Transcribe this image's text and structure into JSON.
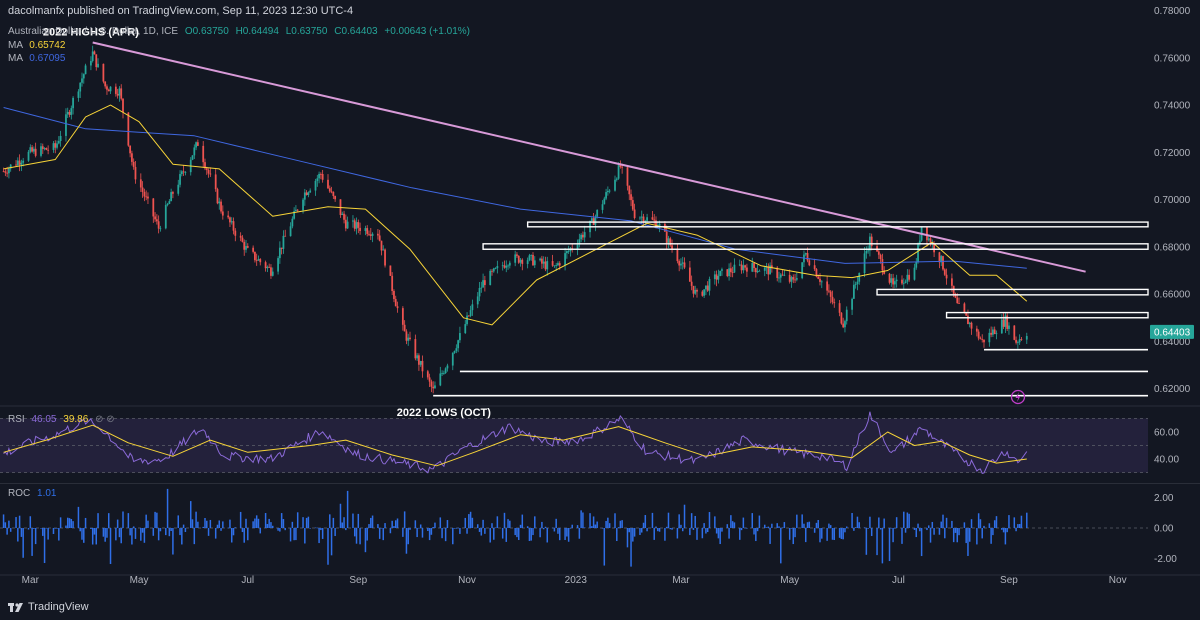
{
  "header": {
    "publish_line": "dacolmanfx published on TradingView.com, Sep 11, 2023 12:30 UTC-4"
  },
  "symbol_line": {
    "name": "Australian Dollar / U.S. Dollar, 1D, ICE",
    "o": "O0.63750",
    "h": "H0.64494",
    "l": "L0.63750",
    "c": "C0.64403",
    "chg": "+0.00643 (+1.01%)"
  },
  "ma_lines": [
    {
      "label": "MA",
      "value": "0.65742",
      "color": "#f7d438"
    },
    {
      "label": "MA",
      "value": "0.67095",
      "color": "#3f67e0"
    }
  ],
  "rsi_label": {
    "label": "RSI",
    "v1": "46.05",
    "v2": "39.86"
  },
  "roc_label": {
    "label": "ROC",
    "v1": "1.01"
  },
  "brand": {
    "name": "TradingView"
  },
  "colors": {
    "up": "#26a69a",
    "down": "#ef5350",
    "ma_fast": "#f7d438",
    "ma_slow": "#3f67e0",
    "trendline": "#d89ad8",
    "rsi": "#8b6ad8",
    "roc": "#2f6fe8",
    "bg": "#131722"
  },
  "chart_data": [
    {
      "type": "candlestick",
      "title": "Australian Dollar / U.S. Dollar, 1D, ICE",
      "x_ticks": [
        "Mar",
        "May",
        "Jul",
        "Sep",
        "Nov",
        "2023",
        "Mar",
        "May",
        "Jul",
        "Sep",
        "Nov"
      ],
      "y_ticks": [
        "0.78000",
        "0.76000",
        "0.74000",
        "0.72000",
        "0.70000",
        "0.68000",
        "0.66000",
        "0.64000",
        "0.62000"
      ],
      "ylim": [
        0.6135,
        0.7845
      ],
      "x_range": [
        "2022-02-12",
        "2023-11-18"
      ],
      "last_price": "0.64403",
      "price_path": [
        [
          "2022-02-14",
          0.712
        ],
        [
          "2022-03-01",
          0.72
        ],
        [
          "2022-03-15",
          0.722
        ],
        [
          "2022-03-28",
          0.748
        ],
        [
          "2022-04-05",
          0.762
        ],
        [
          "2022-04-12",
          0.748
        ],
        [
          "2022-04-20",
          0.746
        ],
        [
          "2022-04-28",
          0.712
        ],
        [
          "2022-05-12",
          0.688
        ],
        [
          "2022-05-20",
          0.703
        ],
        [
          "2022-06-03",
          0.724
        ],
        [
          "2022-06-16",
          0.696
        ],
        [
          "2022-07-01",
          0.678
        ],
        [
          "2022-07-14",
          0.67
        ],
        [
          "2022-08-01",
          0.702
        ],
        [
          "2022-08-11",
          0.711
        ],
        [
          "2022-08-25",
          0.69
        ],
        [
          "2022-09-12",
          0.686
        ],
        [
          "2022-09-26",
          0.645
        ],
        [
          "2022-10-13",
          0.619
        ],
        [
          "2022-10-28",
          0.642
        ],
        [
          "2022-11-10",
          0.665
        ],
        [
          "2022-11-25",
          0.675
        ],
        [
          "2022-12-05",
          0.675
        ],
        [
          "2022-12-20",
          0.671
        ],
        [
          "2023-01-10",
          0.69
        ],
        [
          "2023-01-26",
          0.714
        ],
        [
          "2023-02-03",
          0.694
        ],
        [
          "2023-02-16",
          0.69
        ],
        [
          "2023-03-01",
          0.673
        ],
        [
          "2023-03-10",
          0.659
        ],
        [
          "2023-03-22",
          0.668
        ],
        [
          "2023-04-05",
          0.672
        ],
        [
          "2023-04-20",
          0.67
        ],
        [
          "2023-05-03",
          0.665
        ],
        [
          "2023-05-10",
          0.677
        ],
        [
          "2023-05-20",
          0.664
        ],
        [
          "2023-05-31",
          0.648
        ],
        [
          "2023-06-15",
          0.683
        ],
        [
          "2023-06-28",
          0.663
        ],
        [
          "2023-07-10",
          0.67
        ],
        [
          "2023-07-14",
          0.689
        ],
        [
          "2023-07-25",
          0.674
        ],
        [
          "2023-08-03",
          0.655
        ],
        [
          "2023-08-17",
          0.64
        ],
        [
          "2023-08-30",
          0.649
        ],
        [
          "2023-09-05",
          0.64
        ],
        [
          "2023-09-11",
          0.644
        ]
      ],
      "moving_averages": [
        {
          "value": "0.65742",
          "points": [
            [
              "2022-02-14",
              0.713
            ],
            [
              "2022-03-15",
              0.717
            ],
            [
              "2022-04-01",
              0.735
            ],
            [
              "2022-04-15",
              0.74
            ],
            [
              "2022-05-01",
              0.733
            ],
            [
              "2022-05-20",
              0.715
            ],
            [
              "2022-06-15",
              0.713
            ],
            [
              "2022-07-15",
              0.693
            ],
            [
              "2022-08-15",
              0.697
            ],
            [
              "2022-09-05",
              0.696
            ],
            [
              "2022-09-30",
              0.679
            ],
            [
              "2022-10-30",
              0.65
            ],
            [
              "2022-11-15",
              0.647
            ],
            [
              "2022-12-10",
              0.666
            ],
            [
              "2023-01-10",
              0.678
            ],
            [
              "2023-02-10",
              0.69
            ],
            [
              "2023-03-10",
              0.685
            ],
            [
              "2023-04-15",
              0.672
            ],
            [
              "2023-05-15",
              0.668
            ],
            [
              "2023-06-05",
              0.667
            ],
            [
              "2023-06-25",
              0.67
            ],
            [
              "2023-07-20",
              0.682
            ],
            [
              "2023-08-10",
              0.668
            ],
            [
              "2023-08-25",
              0.668
            ],
            [
              "2023-09-11",
              0.657
            ]
          ]
        },
        {
          "value": "0.67095",
          "points": [
            [
              "2022-02-14",
              0.739
            ],
            [
              "2022-04-01",
              0.73
            ],
            [
              "2022-06-01",
              0.727
            ],
            [
              "2022-08-01",
              0.716
            ],
            [
              "2022-10-01",
              0.705
            ],
            [
              "2022-12-01",
              0.696
            ],
            [
              "2023-02-01",
              0.691
            ],
            [
              "2023-04-01",
              0.679
            ],
            [
              "2023-06-01",
              0.673
            ],
            [
              "2023-08-01",
              0.674
            ],
            [
              "2023-09-11",
              0.671
            ]
          ]
        }
      ],
      "trendline": {
        "from": [
          "2022-04-05",
          0.7665
        ],
        "to": [
          "2023-10-14",
          0.6695
        ]
      },
      "horizontal_lines": [
        {
          "from": "2023-08-18",
          "y": 0.6365
        },
        {
          "from": "2022-10-28",
          "y": 0.6273
        },
        {
          "from": "2022-10-13",
          "y": 0.617
        }
      ],
      "zones": [
        {
          "from": "2022-12-05",
          "y_top": 0.6905,
          "y_bottom": 0.6885
        },
        {
          "from": "2022-11-10",
          "y_top": 0.6813,
          "y_bottom": 0.679
        },
        {
          "from": "2023-06-19",
          "y_top": 0.662,
          "y_bottom": 0.6597
        },
        {
          "from": "2023-07-28",
          "y_top": 0.6522,
          "y_bottom": 0.65
        }
      ],
      "annotations": [
        {
          "text": "2022 HIGHS (APR)",
          "at": [
            "2022-04-04",
            0.7695
          ]
        },
        {
          "text": "2022 LOWS (OCT)",
          "at": [
            "2022-10-19",
            0.6085
          ]
        }
      ]
    },
    {
      "type": "line",
      "title": "RSI",
      "y_ticks": [
        "60.00",
        "40.00"
      ],
      "ylim": [
        23,
        77
      ],
      "band": [
        30,
        70
      ],
      "rsi_path": [
        [
          "2022-02-14",
          44
        ],
        [
          "2022-03-01",
          52
        ],
        [
          "2022-03-15",
          58
        ],
        [
          "2022-04-01",
          68
        ],
        [
          "2022-04-10",
          63
        ],
        [
          "2022-04-28",
          38
        ],
        [
          "2022-05-15",
          40
        ],
        [
          "2022-06-05",
          63
        ],
        [
          "2022-06-18",
          42
        ],
        [
          "2022-07-14",
          40
        ],
        [
          "2022-08-11",
          61
        ],
        [
          "2022-08-30",
          44
        ],
        [
          "2022-09-25",
          37
        ],
        [
          "2022-10-13",
          32
        ],
        [
          "2022-11-01",
          49
        ],
        [
          "2022-11-25",
          64
        ],
        [
          "2022-12-15",
          52
        ],
        [
          "2023-01-05",
          55
        ],
        [
          "2023-01-26",
          70
        ],
        [
          "2023-02-10",
          45
        ],
        [
          "2023-03-10",
          38
        ],
        [
          "2023-04-05",
          54
        ],
        [
          "2023-05-03",
          45
        ],
        [
          "2023-05-20",
          42
        ],
        [
          "2023-06-02",
          35
        ],
        [
          "2023-06-15",
          73
        ],
        [
          "2023-06-28",
          44
        ],
        [
          "2023-07-14",
          63
        ],
        [
          "2023-08-03",
          43
        ],
        [
          "2023-08-17",
          32
        ],
        [
          "2023-08-30",
          46
        ],
        [
          "2023-09-06",
          38
        ],
        [
          "2023-09-11",
          46
        ]
      ],
      "signal_path": [
        [
          "2022-02-14",
          45
        ],
        [
          "2022-03-10",
          54
        ],
        [
          "2022-04-05",
          65
        ],
        [
          "2022-04-25",
          52
        ],
        [
          "2022-05-20",
          42
        ],
        [
          "2022-06-10",
          54
        ],
        [
          "2022-07-01",
          45
        ],
        [
          "2022-08-05",
          50
        ],
        [
          "2022-08-25",
          54
        ],
        [
          "2022-09-20",
          43
        ],
        [
          "2022-10-15",
          35
        ],
        [
          "2022-11-05",
          45
        ],
        [
          "2022-12-01",
          58
        ],
        [
          "2022-12-25",
          54
        ],
        [
          "2023-01-25",
          64
        ],
        [
          "2023-02-20",
          52
        ],
        [
          "2023-03-15",
          42
        ],
        [
          "2023-04-10",
          49
        ],
        [
          "2023-05-10",
          46
        ],
        [
          "2023-06-05",
          41
        ],
        [
          "2023-06-25",
          60
        ],
        [
          "2023-07-10",
          50
        ],
        [
          "2023-07-25",
          53
        ],
        [
          "2023-08-10",
          43
        ],
        [
          "2023-08-25",
          37
        ],
        [
          "2023-09-11",
          40
        ]
      ]
    },
    {
      "type": "bar",
      "title": "ROC",
      "y_ticks": [
        "2.00",
        "0.00",
        "-2.00"
      ],
      "ylim": [
        -2.9,
        2.9
      ],
      "last_value": 1.01
    }
  ]
}
